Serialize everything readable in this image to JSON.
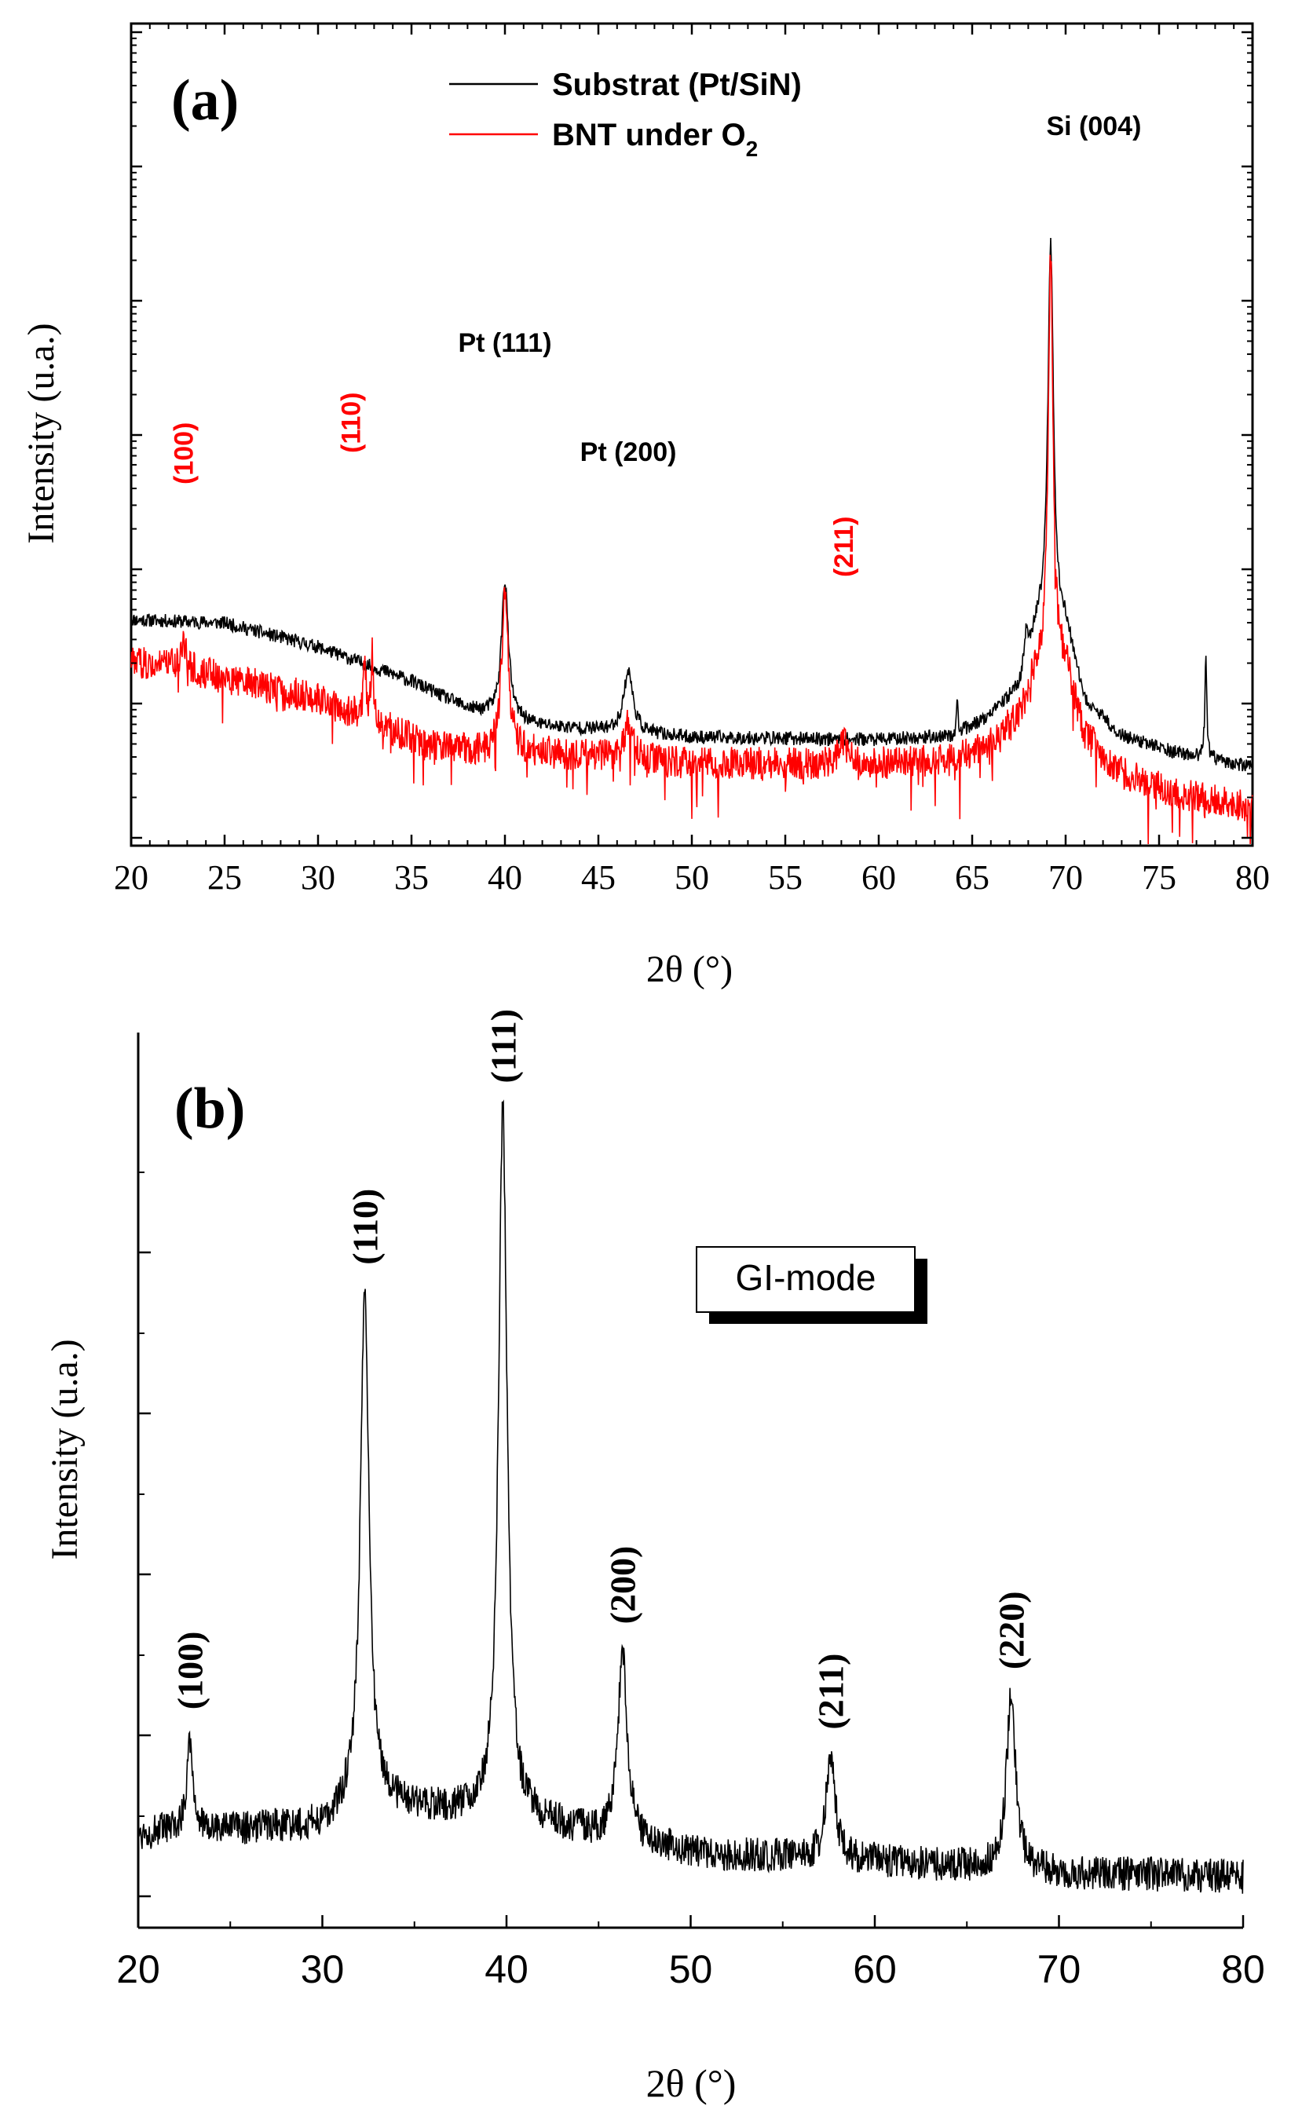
{
  "chart_data": [
    {
      "type": "line",
      "panel_label": "(a)",
      "xlabel": "2θ (°)",
      "ylabel": "Intensity (u.a.)",
      "xlim": [
        20,
        80
      ],
      "xticks": [
        20,
        25,
        30,
        35,
        40,
        45,
        50,
        55,
        60,
        65,
        70,
        75,
        80
      ],
      "y_scale": "log",
      "y_tick_labels_shown": false,
      "legend": {
        "position": "top-center",
        "entries": [
          {
            "text": "Substrat (Pt/SiN)",
            "color": "#000000"
          },
          {
            "text_main": "BNT under O",
            "text_sub": "2",
            "color": "#ff0000"
          }
        ]
      },
      "series": [
        {
          "name": "Substrat (Pt/SiN)",
          "color": "#000000",
          "baseline": [
            [
              20,
              3.3
            ],
            [
              25,
              3.25
            ],
            [
              30,
              2.9
            ],
            [
              35,
              2.4
            ],
            [
              38,
              2.0
            ],
            [
              42,
              1.75
            ],
            [
              50,
              1.58
            ],
            [
              60,
              1.55
            ],
            [
              64,
              1.6
            ],
            [
              66,
              1.9
            ],
            [
              67.5,
              2.3
            ],
            [
              68.5,
              3.2
            ],
            [
              70,
              3.2
            ],
            [
              71,
              2.1
            ],
            [
              73,
              1.6
            ],
            [
              76,
              1.35
            ],
            [
              78,
              1.25
            ],
            [
              80,
              1.15
            ]
          ],
          "noise": 0.1,
          "peaks": [
            {
              "x": 40.0,
              "height": 2.0,
              "width": 0.22,
              "label": "Pt (111)"
            },
            {
              "x": 46.6,
              "height": 0.9,
              "width": 0.3,
              "label": "Pt (200)"
            },
            {
              "x": 69.2,
              "height": 5.6,
              "width": 0.18,
              "label": "Si (004)"
            },
            {
              "x": 67.9,
              "height": 0.45,
              "width": 0.12
            },
            {
              "x": 64.2,
              "height": 0.45,
              "width": 0.05
            },
            {
              "x": 77.5,
              "height": 1.5,
              "width": 0.06
            }
          ]
        },
        {
          "name": "BNT under O2",
          "color": "#ff0000",
          "baseline": [
            [
              20,
              2.7
            ],
            [
              25,
              2.45
            ],
            [
              30,
              2.15
            ],
            [
              33,
              1.8
            ],
            [
              36,
              1.45
            ],
            [
              39,
              1.35
            ],
            [
              42,
              1.35
            ],
            [
              50,
              1.2
            ],
            [
              60,
              1.2
            ],
            [
              64,
              1.25
            ],
            [
              66,
              1.5
            ],
            [
              67.5,
              1.9
            ],
            [
              68.5,
              2.6
            ],
            [
              70,
              2.6
            ],
            [
              71,
              1.6
            ],
            [
              73,
              1.05
            ],
            [
              76,
              0.75
            ],
            [
              80,
              0.55
            ]
          ],
          "noise": 0.24,
          "peaks": [
            {
              "x": 22.8,
              "height": 0.35,
              "width": 0.25,
              "label": "(100)"
            },
            {
              "x": 32.5,
              "height": 0.9,
              "width": 0.08,
              "label": "(110)"
            },
            {
              "x": 32.9,
              "height": 1.0,
              "width": 0.08
            },
            {
              "x": 40.0,
              "height": 2.3,
              "width": 0.22
            },
            {
              "x": 46.6,
              "height": 0.5,
              "width": 0.28
            },
            {
              "x": 58.1,
              "height": 0.35,
              "width": 0.25,
              "label": "(211)"
            },
            {
              "x": 69.2,
              "height": 6.0,
              "width": 0.16
            }
          ]
        }
      ]
    },
    {
      "type": "line",
      "panel_label": "(b)",
      "xlabel": "2θ (°)",
      "ylabel": "Intensity (u.a.)",
      "xlim": [
        20,
        80
      ],
      "xticks": [
        20,
        30,
        40,
        50,
        60,
        70,
        80
      ],
      "y_tick_labels_shown": false,
      "annotation_box": "GI-mode",
      "series": [
        {
          "color": "#000000",
          "baseline": [
            [
              20,
              0.8
            ],
            [
              30,
              0.9
            ],
            [
              32,
              1.2
            ],
            [
              40,
              1.0
            ],
            [
              50,
              0.55
            ],
            [
              60,
              0.45
            ],
            [
              70,
              0.3
            ],
            [
              80,
              0.25
            ]
          ],
          "noise": 0.22,
          "peaks": [
            {
              "x": 22.8,
              "height": 1.2,
              "width": 0.2,
              "label": "(100)"
            },
            {
              "x": 32.3,
              "height": 6.5,
              "width": 0.28,
              "label": "(110)"
            },
            {
              "x": 39.8,
              "height": 9.0,
              "width": 0.28,
              "label": "(111)"
            },
            {
              "x": 46.3,
              "height": 2.4,
              "width": 0.3,
              "label": "(200)"
            },
            {
              "x": 57.6,
              "height": 1.3,
              "width": 0.3,
              "label": "(211)"
            },
            {
              "x": 67.4,
              "height": 2.2,
              "width": 0.3,
              "label": "(220)"
            }
          ]
        }
      ]
    }
  ]
}
